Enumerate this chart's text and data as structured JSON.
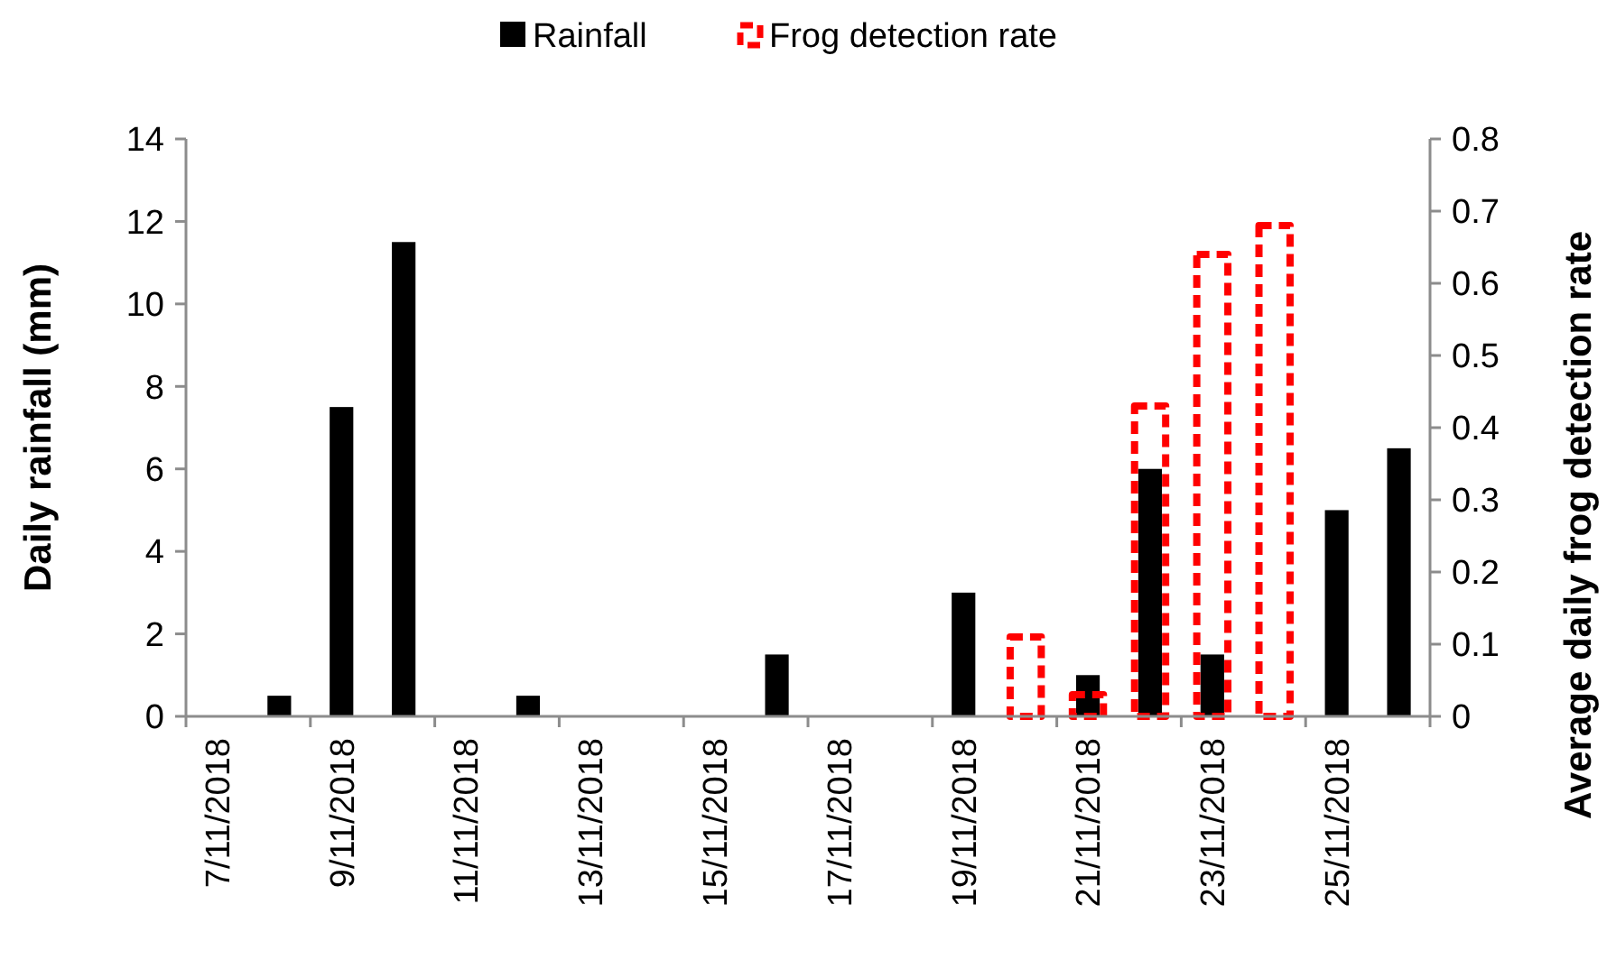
{
  "chart_data": {
    "type": "bar",
    "categories": [
      "7/11/2018",
      null,
      "9/11/2018",
      null,
      "11/11/2018",
      null,
      "13/11/2018",
      null,
      "15/11/2018",
      null,
      "17/11/2018",
      null,
      "19/11/2018",
      null,
      "21/11/2018",
      null,
      "23/11/2018",
      null,
      "25/11/2018",
      null
    ],
    "series": [
      {
        "name": "Rainfall",
        "color": "#000000",
        "values": [
          0,
          0.5,
          7.5,
          11.5,
          0,
          0.5,
          0,
          0,
          0,
          1.5,
          0,
          0,
          3,
          0,
          1,
          6,
          1.5,
          0,
          5,
          6.5
        ]
      },
      {
        "name": "Frog detection rate",
        "color": "#ff0000",
        "axis": "y2",
        "line_style": "dashed",
        "values": [
          null,
          null,
          null,
          null,
          null,
          null,
          null,
          null,
          null,
          null,
          null,
          null,
          null,
          0.11,
          0.03,
          0.43,
          0.64,
          0.68,
          null,
          null
        ]
      }
    ],
    "ylabel": "Daily rainfall (mm)",
    "y2label": "Average daily frog detection rate",
    "ylim": [
      0,
      14
    ],
    "yticks": [
      0,
      2,
      4,
      6,
      8,
      10,
      12,
      14
    ],
    "y2lim": [
      0,
      0.8
    ],
    "y2ticks": [
      0,
      0.1,
      0.2,
      0.3,
      0.4,
      0.5,
      0.6,
      0.7,
      0.8
    ],
    "legend": "top",
    "grid": false
  }
}
